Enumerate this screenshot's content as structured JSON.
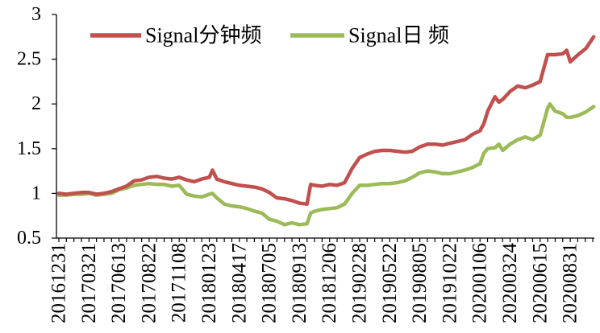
{
  "chart_data": {
    "type": "line",
    "ylim": [
      0.5,
      3
    ],
    "y_ticks": [
      0.5,
      1,
      1.5,
      2,
      2.5,
      3
    ],
    "grid": false,
    "legend": "top",
    "x_tick_labels": [
      "20161231",
      "20170321",
      "20170613",
      "20170822",
      "20171108",
      "20180123",
      "20180417",
      "20180705",
      "20180913",
      "20181206",
      "20190228",
      "20190522",
      "20190805",
      "20191022",
      "20200106",
      "20200324",
      "20200615",
      "20200831"
    ],
    "x": [
      "20161231",
      "20170120",
      "20170209",
      "20170301",
      "20170321",
      "20170411",
      "20170502",
      "20170523",
      "20170613",
      "20170630",
      "20170718",
      "20170804",
      "20170822",
      "20170911",
      "20170930",
      "20171020",
      "20171108",
      "20171127",
      "20171216",
      "20180104",
      "20180123",
      "20180201",
      "20180213",
      "20180306",
      "20180327",
      "20180417",
      "20180507",
      "20180527",
      "20180615",
      "20180705",
      "20180722",
      "20180809",
      "20180826",
      "20180913",
      "20181004",
      "20181014",
      "20181025",
      "20181115",
      "20181206",
      "20181227",
      "20190117",
      "20190207",
      "20190228",
      "20190321",
      "20190411",
      "20190501",
      "20190522",
      "20190610",
      "20190629",
      "20190717",
      "20190805",
      "20190825",
      "20190913",
      "20191003",
      "20191022",
      "20191110",
      "20191129",
      "20191218",
      "20200106",
      "20200116",
      "20200126",
      "20200214",
      "20200224",
      "20200305",
      "20200324",
      "20200414",
      "20200505",
      "20200525",
      "20200615",
      "20200704",
      "20200710",
      "20200723",
      "20200812",
      "20200822",
      "20200831",
      "20200920",
      "20201010",
      "20201030"
    ],
    "series": [
      {
        "name": "Signal分钟频",
        "color": "#C0504D",
        "values": [
          1.0,
          0.99,
          1.0,
          1.01,
          1.01,
          0.99,
          1.0,
          1.02,
          1.05,
          1.08,
          1.14,
          1.15,
          1.18,
          1.19,
          1.17,
          1.16,
          1.18,
          1.15,
          1.13,
          1.16,
          1.18,
          1.26,
          1.16,
          1.13,
          1.11,
          1.09,
          1.08,
          1.07,
          1.05,
          1.01,
          0.95,
          0.94,
          0.92,
          0.89,
          0.88,
          1.1,
          1.09,
          1.08,
          1.1,
          1.09,
          1.12,
          1.28,
          1.4,
          1.44,
          1.47,
          1.48,
          1.48,
          1.47,
          1.46,
          1.47,
          1.52,
          1.55,
          1.55,
          1.54,
          1.56,
          1.58,
          1.6,
          1.66,
          1.7,
          1.78,
          1.92,
          2.08,
          2.02,
          2.05,
          2.14,
          2.2,
          2.18,
          2.21,
          2.25,
          2.55,
          2.55,
          2.55,
          2.56,
          2.6,
          2.47,
          2.55,
          2.62,
          2.75
        ]
      },
      {
        "name": "Signal日 频",
        "color": "#9BBB59",
        "values": [
          0.98,
          0.98,
          0.99,
          0.99,
          1.0,
          0.98,
          0.99,
          1.0,
          1.04,
          1.06,
          1.09,
          1.1,
          1.11,
          1.1,
          1.1,
          1.08,
          1.09,
          0.99,
          0.97,
          0.96,
          0.99,
          1.0,
          0.95,
          0.88,
          0.86,
          0.85,
          0.83,
          0.8,
          0.78,
          0.71,
          0.69,
          0.65,
          0.67,
          0.65,
          0.66,
          0.78,
          0.8,
          0.82,
          0.83,
          0.84,
          0.88,
          1.0,
          1.09,
          1.09,
          1.1,
          1.11,
          1.11,
          1.12,
          1.14,
          1.18,
          1.23,
          1.25,
          1.24,
          1.22,
          1.22,
          1.24,
          1.26,
          1.29,
          1.33,
          1.45,
          1.5,
          1.51,
          1.55,
          1.48,
          1.55,
          1.6,
          1.63,
          1.6,
          1.65,
          1.95,
          2.0,
          1.92,
          1.89,
          1.85,
          1.85,
          1.87,
          1.91,
          1.97
        ]
      }
    ]
  }
}
